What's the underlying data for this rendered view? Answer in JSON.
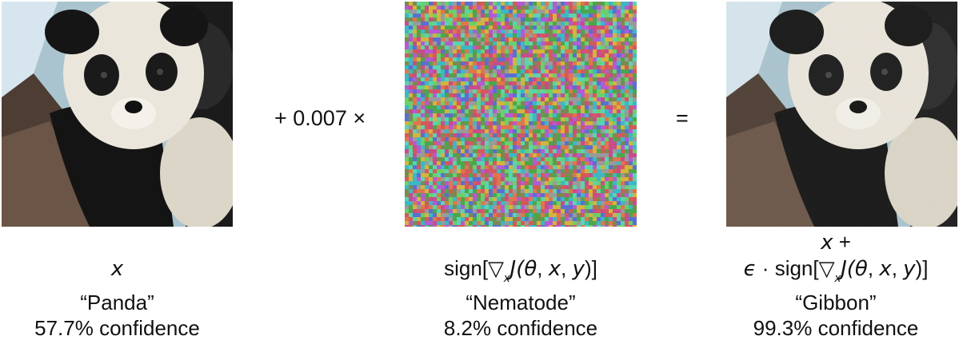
{
  "operator_multiply": "+ 0.007 ×",
  "operator_equals": "=",
  "columns": [
    {
      "formula_var": "x",
      "label": "“Panda”",
      "confidence": "57.7% confidence"
    },
    {
      "formula_pre": "sign[",
      "formula_sub": "x",
      "formula_J": "J(",
      "formula_theta": "θ",
      "formula_sep1": ", ",
      "formula_x": "x",
      "formula_sep2": ", ",
      "formula_y": "y",
      "formula_post": ")]",
      "label": "“Nematode”",
      "confidence": "8.2% confidence"
    },
    {
      "formula_line1_var": "x",
      "formula_line1_op": " +",
      "formula_eps": "ϵ",
      "formula_dot": " · ",
      "formula_pre": "sign[",
      "formula_sub": "x",
      "formula_J": "J(",
      "formula_theta": "θ",
      "formula_sep1": ", ",
      "formula_x": "x",
      "formula_sep2": ", ",
      "formula_y": "y",
      "formula_post": ")]",
      "label": "“Gibbon”",
      "confidence": "99.3% confidence"
    }
  ]
}
